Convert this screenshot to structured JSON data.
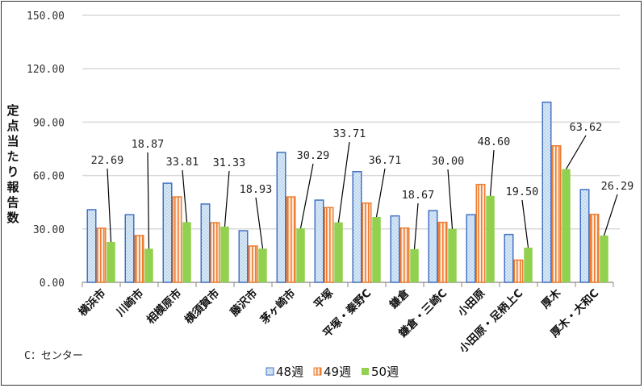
{
  "chart_data": {
    "type": "bar",
    "title": "",
    "xlabel": "",
    "ylabel": "定点当たり報告数",
    "ylim": [
      0,
      150
    ],
    "yticks": [
      "0.00",
      "30.00",
      "60.00",
      "90.00",
      "120.00",
      "150.00"
    ],
    "grid": true,
    "legend_position": "bottom",
    "categories": [
      "横浜市",
      "川崎市",
      "相模原市",
      "横須賀市",
      "藤沢市",
      "茅ヶ崎市",
      "平塚",
      "平塚・秦野C",
      "鎌倉",
      "鎌倉・三崎C",
      "小田原",
      "小田原・足柄上C",
      "厚木",
      "厚木・大和C"
    ],
    "series": [
      {
        "name": "48週",
        "color": "#4472c4",
        "values": [
          40.8,
          38.0,
          55.7,
          44.0,
          29.0,
          73.0,
          46.2,
          62.2,
          37.3,
          40.3,
          38.0,
          26.9,
          101.2,
          52.1
        ]
      },
      {
        "name": "49週",
        "color": "#ed7d31",
        "values": [
          30.4,
          26.3,
          48.0,
          33.5,
          20.4,
          48.0,
          42.0,
          44.5,
          30.5,
          33.7,
          55.0,
          12.5,
          76.7,
          38.2
        ]
      },
      {
        "name": "50週",
        "color": "#92d050",
        "values": [
          22.69,
          18.87,
          33.81,
          31.33,
          18.93,
          30.29,
          33.71,
          36.71,
          18.67,
          30.0,
          48.6,
          19.5,
          63.62,
          26.29
        ]
      }
    ],
    "data_labels": [
      "22.69",
      "18.87",
      "33.81",
      "31.33",
      "18.93",
      "30.29",
      "33.71",
      "36.71",
      "18.67",
      "30.00",
      "48.60",
      "19.50",
      "63.62",
      "26.29"
    ],
    "annotation": "C：センター"
  }
}
